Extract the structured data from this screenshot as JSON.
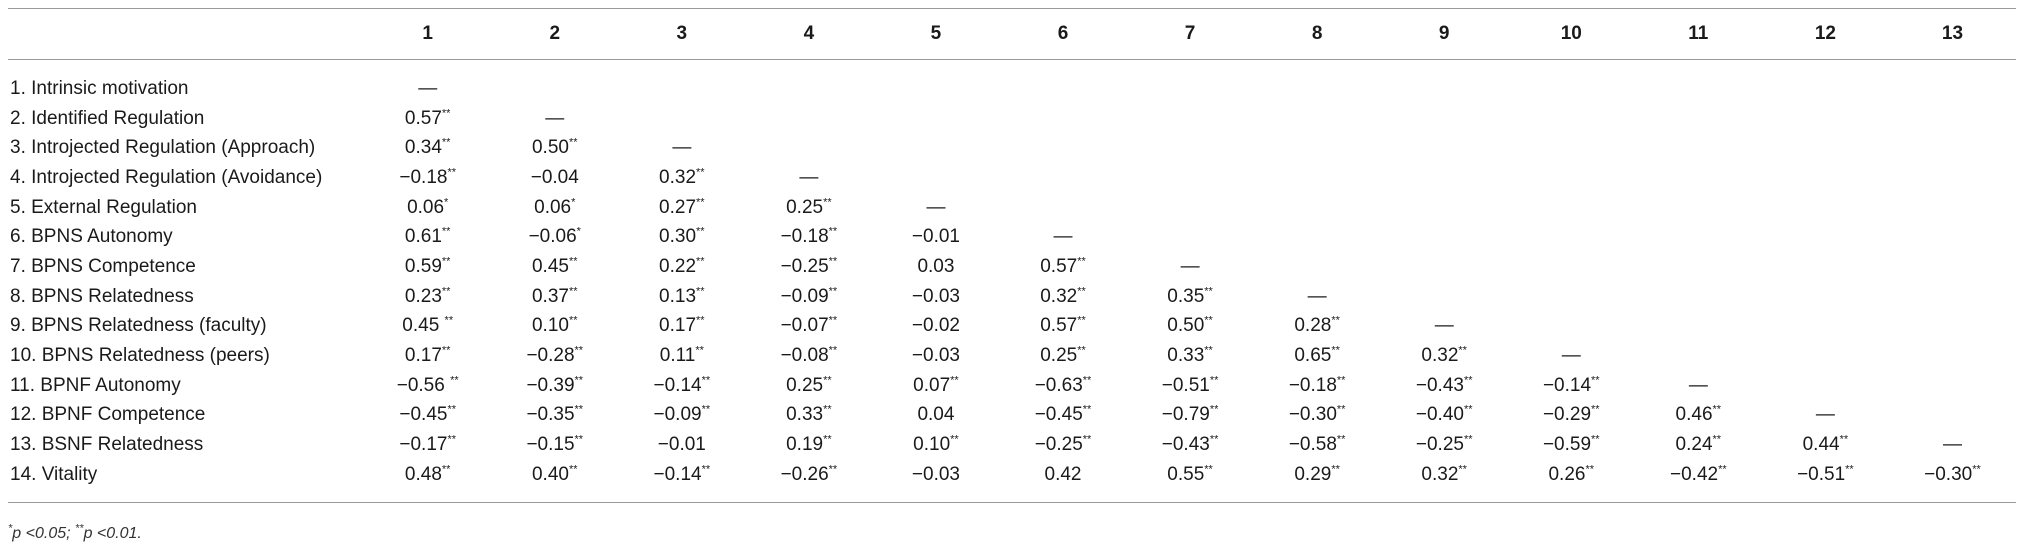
{
  "table": {
    "columns": [
      "",
      "1",
      "2",
      "3",
      "4",
      "5",
      "6",
      "7",
      "8",
      "9",
      "10",
      "11",
      "12",
      "13"
    ],
    "rows": [
      {
        "label": "1. Intrinsic motivation",
        "cells": [
          [
            "—",
            ""
          ],
          [
            "",
            ""
          ],
          [
            "",
            ""
          ],
          [
            "",
            ""
          ],
          [
            "",
            ""
          ],
          [
            "",
            ""
          ],
          [
            "",
            ""
          ],
          [
            "",
            ""
          ],
          [
            "",
            ""
          ],
          [
            "",
            ""
          ],
          [
            "",
            ""
          ],
          [
            "",
            ""
          ],
          [
            "",
            ""
          ]
        ]
      },
      {
        "label": "2. Identified Regulation",
        "cells": [
          [
            "0.57",
            "**"
          ],
          [
            "—",
            ""
          ],
          [
            "",
            ""
          ],
          [
            "",
            ""
          ],
          [
            "",
            ""
          ],
          [
            "",
            ""
          ],
          [
            "",
            ""
          ],
          [
            "",
            ""
          ],
          [
            "",
            ""
          ],
          [
            "",
            ""
          ],
          [
            "",
            ""
          ],
          [
            "",
            ""
          ],
          [
            "",
            ""
          ]
        ]
      },
      {
        "label": "3. Introjected Regulation (Approach)",
        "cells": [
          [
            "0.34",
            "**"
          ],
          [
            "0.50",
            "**"
          ],
          [
            "—",
            ""
          ],
          [
            "",
            ""
          ],
          [
            "",
            ""
          ],
          [
            "",
            ""
          ],
          [
            "",
            ""
          ],
          [
            "",
            ""
          ],
          [
            "",
            ""
          ],
          [
            "",
            ""
          ],
          [
            "",
            ""
          ],
          [
            "",
            ""
          ],
          [
            "",
            ""
          ]
        ]
      },
      {
        "label": "4. Introjected Regulation (Avoidance)",
        "cells": [
          [
            "−0.18",
            "**"
          ],
          [
            "−0.04",
            ""
          ],
          [
            "0.32",
            "**"
          ],
          [
            "—",
            ""
          ],
          [
            "",
            ""
          ],
          [
            "",
            ""
          ],
          [
            "",
            ""
          ],
          [
            "",
            ""
          ],
          [
            "",
            ""
          ],
          [
            "",
            ""
          ],
          [
            "",
            ""
          ],
          [
            "",
            ""
          ],
          [
            "",
            ""
          ]
        ]
      },
      {
        "label": "5. External Regulation",
        "cells": [
          [
            "0.06",
            "*"
          ],
          [
            "0.06",
            "*"
          ],
          [
            "0.27",
            "**"
          ],
          [
            "0.25",
            "**"
          ],
          [
            "—",
            ""
          ],
          [
            "",
            ""
          ],
          [
            "",
            ""
          ],
          [
            "",
            ""
          ],
          [
            "",
            ""
          ],
          [
            "",
            ""
          ],
          [
            "",
            ""
          ],
          [
            "",
            ""
          ],
          [
            "",
            ""
          ]
        ]
      },
      {
        "label": "6. BPNS Autonomy",
        "cells": [
          [
            "0.61",
            "**"
          ],
          [
            "−0.06",
            "*"
          ],
          [
            "0.30",
            "**"
          ],
          [
            "−0.18",
            "**"
          ],
          [
            "−0.01",
            ""
          ],
          [
            "—",
            ""
          ],
          [
            "",
            ""
          ],
          [
            "",
            ""
          ],
          [
            "",
            ""
          ],
          [
            "",
            ""
          ],
          [
            "",
            ""
          ],
          [
            "",
            ""
          ],
          [
            "",
            ""
          ]
        ]
      },
      {
        "label": "7. BPNS Competence",
        "cells": [
          [
            "0.59",
            "**"
          ],
          [
            "0.45",
            "**"
          ],
          [
            "0.22",
            "**"
          ],
          [
            "−0.25",
            "**"
          ],
          [
            "0.03",
            ""
          ],
          [
            "0.57",
            "**"
          ],
          [
            "—",
            ""
          ],
          [
            "",
            ""
          ],
          [
            "",
            ""
          ],
          [
            "",
            ""
          ],
          [
            "",
            ""
          ],
          [
            "",
            ""
          ],
          [
            "",
            ""
          ]
        ]
      },
      {
        "label": "8. BPNS Relatedness",
        "cells": [
          [
            "0.23",
            "**"
          ],
          [
            "0.37",
            "**"
          ],
          [
            "0.13",
            "**"
          ],
          [
            "−0.09",
            "**"
          ],
          [
            "−0.03",
            ""
          ],
          [
            "0.32",
            "**"
          ],
          [
            "0.35",
            "**"
          ],
          [
            "—",
            ""
          ],
          [
            "",
            ""
          ],
          [
            "",
            ""
          ],
          [
            "",
            ""
          ],
          [
            "",
            ""
          ],
          [
            "",
            ""
          ]
        ]
      },
      {
        "label": "9. BPNS Relatedness (faculty)",
        "cells": [
          [
            "0.45 ",
            "**"
          ],
          [
            "0.10",
            "**"
          ],
          [
            "0.17",
            "**"
          ],
          [
            "−0.07",
            "**"
          ],
          [
            "−0.02",
            ""
          ],
          [
            "0.57",
            "**"
          ],
          [
            "0.50",
            "**"
          ],
          [
            "0.28",
            "**"
          ],
          [
            "—",
            ""
          ],
          [
            "",
            ""
          ],
          [
            "",
            ""
          ],
          [
            "",
            ""
          ],
          [
            "",
            ""
          ]
        ]
      },
      {
        "label": "10. BPNS Relatedness (peers)",
        "cells": [
          [
            "0.17",
            "**"
          ],
          [
            "−0.28",
            "**"
          ],
          [
            "0.11",
            "**"
          ],
          [
            "−0.08",
            "**"
          ],
          [
            "−0.03",
            ""
          ],
          [
            "0.25",
            "**"
          ],
          [
            "0.33",
            "**"
          ],
          [
            "0.65",
            "**"
          ],
          [
            "0.32",
            "**"
          ],
          [
            "—",
            ""
          ],
          [
            "",
            ""
          ],
          [
            "",
            ""
          ],
          [
            "",
            ""
          ]
        ]
      },
      {
        "label": "11. BPNF Autonomy",
        "cells": [
          [
            "−0.56 ",
            "**"
          ],
          [
            "−0.39",
            "**"
          ],
          [
            "−0.14",
            "**"
          ],
          [
            "0.25",
            "**"
          ],
          [
            "0.07",
            "**"
          ],
          [
            "−0.63",
            "**"
          ],
          [
            "−0.51",
            "**"
          ],
          [
            "−0.18",
            "**"
          ],
          [
            "−0.43",
            "**"
          ],
          [
            "−0.14",
            "**"
          ],
          [
            "—",
            ""
          ],
          [
            "",
            ""
          ],
          [
            "",
            ""
          ]
        ]
      },
      {
        "label": "12. BPNF Competence",
        "cells": [
          [
            "−0.45",
            "**"
          ],
          [
            "−0.35",
            "**"
          ],
          [
            "−0.09",
            "**"
          ],
          [
            "0.33",
            "**"
          ],
          [
            "0.04",
            ""
          ],
          [
            "−0.45",
            "**"
          ],
          [
            "−0.79",
            "**"
          ],
          [
            "−0.30",
            "**"
          ],
          [
            "−0.40",
            "**"
          ],
          [
            "−0.29",
            "**"
          ],
          [
            "0.46",
            "**"
          ],
          [
            "—",
            ""
          ],
          [
            "",
            ""
          ]
        ]
      },
      {
        "label": "13. BSNF Relatedness",
        "cells": [
          [
            "−0.17",
            "**"
          ],
          [
            "−0.15",
            "**"
          ],
          [
            "−0.01",
            ""
          ],
          [
            "0.19",
            "**"
          ],
          [
            "0.10",
            "**"
          ],
          [
            "−0.25",
            "**"
          ],
          [
            "−0.43",
            "**"
          ],
          [
            "−0.58",
            "**"
          ],
          [
            "−0.25",
            "**"
          ],
          [
            "−0.59",
            "**"
          ],
          [
            "0.24",
            "**"
          ],
          [
            "0.44",
            "**"
          ],
          [
            "—",
            ""
          ]
        ]
      },
      {
        "label": "14. Vitality",
        "cells": [
          [
            "0.48",
            "**"
          ],
          [
            "0.40",
            "**"
          ],
          [
            "−0.14",
            "**"
          ],
          [
            "−0.26",
            "**"
          ],
          [
            "−0.03",
            ""
          ],
          [
            "0.42",
            ""
          ],
          [
            "0.55",
            "**"
          ],
          [
            "0.29",
            "**"
          ],
          [
            "0.32",
            "**"
          ],
          [
            "0.26",
            "**"
          ],
          [
            "−0.42",
            "**"
          ],
          [
            "−0.51",
            "**"
          ],
          [
            "−0.30",
            "**"
          ]
        ]
      }
    ]
  },
  "footnote": {
    "star1": "*",
    "text1": "p <0.05; ",
    "star2": "**",
    "text2": "p <0.01."
  }
}
